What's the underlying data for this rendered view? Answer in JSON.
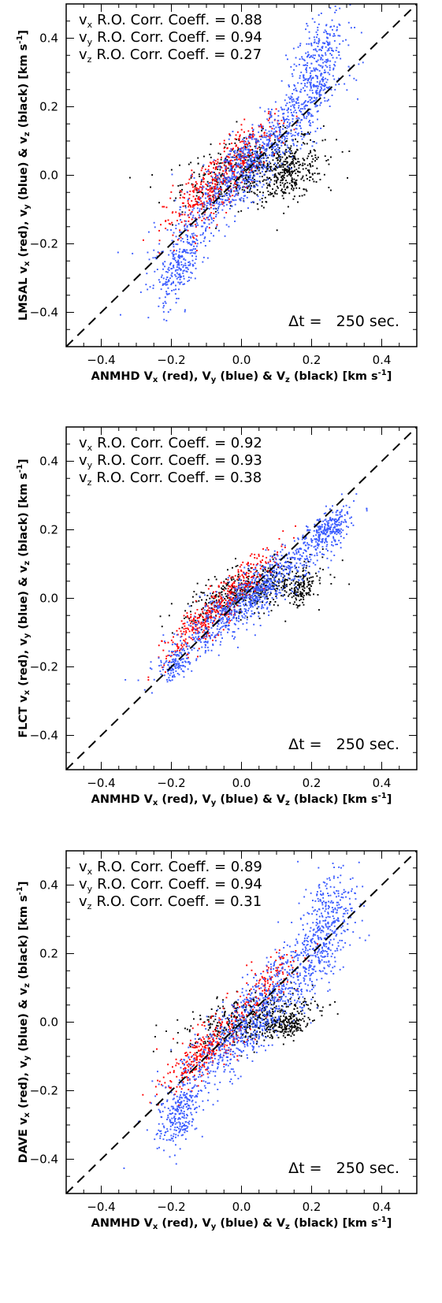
{
  "chart_data": [
    {
      "type": "scatter",
      "title": "",
      "xlabel": "ANMHD V_x (red), V_y (blue) & V_z (black) [km s^-1]",
      "ylabel": "LMSAL v_x (red), v_y (blue) & v_z (black) [km s^-1]",
      "xlabel_parts": {
        "main": "ANMHD V",
        "rest": " (red), V",
        "rest2": " (blue) & V",
        "rest3": " (black) [km s",
        "end": "]",
        "sub_x": "x",
        "sub_y": "y",
        "sub_z": "z",
        "sup": "-1"
      },
      "ylabel_parts": {
        "main": "LMSAL v",
        "rest": " (red), v",
        "rest2": " (blue) & v",
        "rest3": " (black) [km s",
        "end": "]",
        "sub_x": "x",
        "sub_y": "y",
        "sub_z": "z",
        "sup": "-1"
      },
      "xlim": [
        -0.5,
        0.5
      ],
      "ylim": [
        -0.5,
        0.5
      ],
      "xticks": [
        -0.4,
        -0.2,
        0.0,
        0.2,
        0.4
      ],
      "yticks": [
        -0.4,
        -0.2,
        0.0,
        0.2,
        0.4
      ],
      "xtick_labels": [
        "−0.4",
        "−0.2",
        "0.0",
        "0.2",
        "0.4"
      ],
      "ytick_labels": [
        "−0.4",
        "−0.2",
        "0.0",
        "0.2",
        "0.4"
      ],
      "reference_line": "y = x (dashed)",
      "annotations": [
        {
          "component": "x",
          "text": "R.O. Corr. Coeff. = 0.88"
        },
        {
          "component": "y",
          "text": "R.O. Corr. Coeff. = 0.94"
        },
        {
          "component": "z",
          "text": "R.O. Corr. Coeff. = 0.27"
        }
      ],
      "dt_label": "Δt =   250 sec.",
      "series": [
        {
          "component": "vx",
          "color": "#ff0000",
          "clusters": [
            {
              "x": -0.1,
              "y": -0.05,
              "sx": 0.06,
              "sy": 0.07,
              "rho": 0.75,
              "n": 320
            },
            {
              "x": 0.02,
              "y": 0.07,
              "sx": 0.05,
              "sy": 0.06,
              "rho": 0.7,
              "n": 160
            }
          ]
        },
        {
          "component": "vy",
          "color": "#3a5bff",
          "clusters": [
            {
              "x": 0.02,
              "y": 0.03,
              "sx": 0.11,
              "sy": 0.12,
              "rho": 0.9,
              "n": 900
            },
            {
              "x": 0.21,
              "y": 0.31,
              "sx": 0.04,
              "sy": 0.09,
              "rho": 0.6,
              "n": 380
            },
            {
              "x": -0.18,
              "y": -0.27,
              "sx": 0.03,
              "sy": 0.06,
              "rho": 0.6,
              "n": 240
            }
          ]
        },
        {
          "component": "vz",
          "color": "#000000",
          "clusters": [
            {
              "x": 0.03,
              "y": 0.02,
              "sx": 0.1,
              "sy": 0.05,
              "rho": 0.45,
              "n": 480
            },
            {
              "x": 0.13,
              "y": 0.0,
              "sx": 0.05,
              "sy": 0.04,
              "rho": 0.3,
              "n": 260
            }
          ]
        }
      ]
    },
    {
      "type": "scatter",
      "title": "",
      "xlabel": "ANMHD V_x (red), V_y (blue) & V_z (black) [km s^-1]",
      "ylabel": "FLCT v_x (red), v_y (blue) & v_z (black) [km s^-1]",
      "xlabel_parts": {
        "main": "ANMHD V",
        "rest": " (red), V",
        "rest2": " (blue) & V",
        "rest3": " (black) [km s",
        "end": "]",
        "sub_x": "x",
        "sub_y": "y",
        "sub_z": "z",
        "sup": "-1"
      },
      "ylabel_parts": {
        "main": "FLCT v",
        "rest": " (red), v",
        "rest2": " (blue) & v",
        "rest3": " (black) [km s",
        "end": "]",
        "sub_x": "x",
        "sub_y": "y",
        "sub_z": "z",
        "sup": "-1"
      },
      "xlim": [
        -0.5,
        0.5
      ],
      "ylim": [
        -0.5,
        0.5
      ],
      "xticks": [
        -0.4,
        -0.2,
        0.0,
        0.2,
        0.4
      ],
      "yticks": [
        -0.4,
        -0.2,
        0.0,
        0.2,
        0.4
      ],
      "xtick_labels": [
        "−0.4",
        "−0.2",
        "0.0",
        "0.2",
        "0.4"
      ],
      "ytick_labels": [
        "−0.4",
        "−0.2",
        "0.0",
        "0.2",
        "0.4"
      ],
      "reference_line": "y = x (dashed)",
      "annotations": [
        {
          "component": "x",
          "text": "R.O. Corr. Coeff. = 0.92"
        },
        {
          "component": "y",
          "text": "R.O. Corr. Coeff. = 0.93"
        },
        {
          "component": "z",
          "text": "R.O. Corr. Coeff. = 0.38"
        }
      ],
      "dt_label": "Δt =   250 sec.",
      "series": [
        {
          "component": "vx",
          "color": "#ff0000",
          "clusters": [
            {
              "x": -0.1,
              "y": -0.06,
              "sx": 0.06,
              "sy": 0.06,
              "rho": 0.85,
              "n": 320
            },
            {
              "x": 0.03,
              "y": 0.07,
              "sx": 0.05,
              "sy": 0.05,
              "rho": 0.8,
              "n": 140
            }
          ]
        },
        {
          "component": "vy",
          "color": "#3a5bff",
          "clusters": [
            {
              "x": 0.03,
              "y": 0.01,
              "sx": 0.12,
              "sy": 0.1,
              "rho": 0.93,
              "n": 900
            },
            {
              "x": 0.25,
              "y": 0.2,
              "sx": 0.03,
              "sy": 0.03,
              "rho": 0.5,
              "n": 220
            },
            {
              "x": -0.19,
              "y": -0.2,
              "sx": 0.02,
              "sy": 0.02,
              "rho": 0.5,
              "n": 100
            }
          ]
        },
        {
          "component": "vz",
          "color": "#000000",
          "clusters": [
            {
              "x": 0.02,
              "y": 0.02,
              "sx": 0.09,
              "sy": 0.04,
              "rho": 0.6,
              "n": 460
            },
            {
              "x": 0.17,
              "y": 0.03,
              "sx": 0.02,
              "sy": 0.03,
              "rho": 0.3,
              "n": 140
            }
          ]
        }
      ]
    },
    {
      "type": "scatter",
      "title": "",
      "xlabel": "ANMHD V_x (red), V_y (blue) & V_z (black) [km s^-1]",
      "ylabel": "DAVE v_x (red), v_y (blue) & v_z (black) [km s^-1]",
      "xlabel_parts": {
        "main": "ANMHD V",
        "rest": " (red), V",
        "rest2": " (blue) & V",
        "rest3": " (black) [km s",
        "end": "]",
        "sub_x": "x",
        "sub_y": "y",
        "sub_z": "z",
        "sup": "-1"
      },
      "ylabel_parts": {
        "main": "DAVE v",
        "rest": " (red), v",
        "rest2": " (blue) & v",
        "rest3": " (black) [km s",
        "end": "]",
        "sub_x": "x",
        "sub_y": "y",
        "sub_z": "z",
        "sup": "-1"
      },
      "xlim": [
        -0.5,
        0.5
      ],
      "ylim": [
        -0.5,
        0.5
      ],
      "xticks": [
        -0.4,
        -0.2,
        0.0,
        0.2,
        0.4
      ],
      "yticks": [
        -0.4,
        -0.2,
        0.0,
        0.2,
        0.4
      ],
      "xtick_labels": [
        "−0.4",
        "−0.2",
        "0.0",
        "0.2",
        "0.4"
      ],
      "ytick_labels": [
        "−0.4",
        "−0.2",
        "0.0",
        "0.2",
        "0.4"
      ],
      "reference_line": "y = x (dashed)",
      "annotations": [
        {
          "component": "x",
          "text": "R.O. Corr. Coeff. = 0.89"
        },
        {
          "component": "y",
          "text": "R.O. Corr. Coeff. = 0.94"
        },
        {
          "component": "z",
          "text": "R.O. Corr. Coeff. = 0.31"
        }
      ],
      "dt_label": "Δt =   250 sec.",
      "series": [
        {
          "component": "vx",
          "color": "#ff0000",
          "clusters": [
            {
              "x": -0.1,
              "y": -0.08,
              "sx": 0.06,
              "sy": 0.06,
              "rho": 0.8,
              "n": 340
            },
            {
              "x": 0.08,
              "y": 0.12,
              "sx": 0.05,
              "sy": 0.05,
              "rho": 0.7,
              "n": 120
            }
          ]
        },
        {
          "component": "vy",
          "color": "#3a5bff",
          "clusters": [
            {
              "x": 0.03,
              "y": 0.01,
              "sx": 0.11,
              "sy": 0.12,
              "rho": 0.88,
              "n": 900
            },
            {
              "x": 0.24,
              "y": 0.28,
              "sx": 0.04,
              "sy": 0.09,
              "rho": 0.5,
              "n": 380
            },
            {
              "x": -0.18,
              "y": -0.28,
              "sx": 0.03,
              "sy": 0.05,
              "rho": 0.5,
              "n": 220
            }
          ]
        },
        {
          "component": "vz",
          "color": "#000000",
          "clusters": [
            {
              "x": 0.03,
              "y": 0.01,
              "sx": 0.09,
              "sy": 0.04,
              "rho": 0.5,
              "n": 440
            },
            {
              "x": 0.13,
              "y": -0.01,
              "sx": 0.03,
              "sy": 0.02,
              "rho": 0.3,
              "n": 160
            }
          ]
        }
      ]
    }
  ]
}
